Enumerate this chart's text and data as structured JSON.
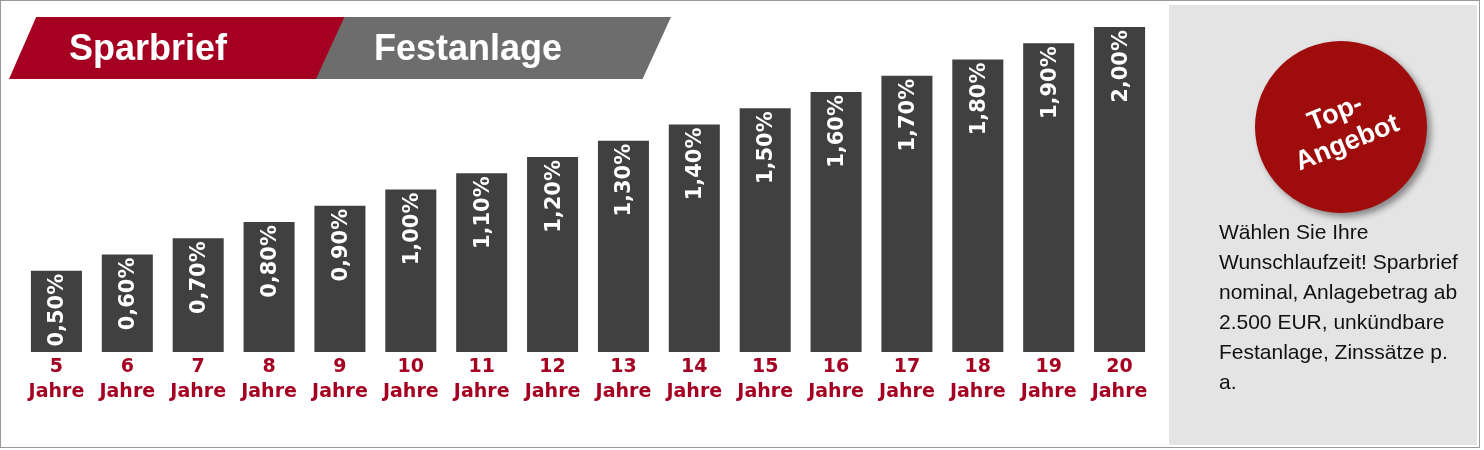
{
  "chart_data": {
    "type": "bar",
    "title": "Sparbrief",
    "subtitle": "Festanlage",
    "categories": [
      "5\nJahre",
      "6\nJahre",
      "7\nJahre",
      "8\nJahre",
      "9\nJahre",
      "10\nJahre",
      "11\nJahre",
      "12\nJahre",
      "13\nJahre",
      "14\nJahre",
      "15\nJahre",
      "16\nJahre",
      "17\nJahre",
      "18\nJahre",
      "19\nJahre",
      "20\nJahre"
    ],
    "values": [
      0.5,
      0.6,
      0.7,
      0.8,
      0.9,
      1.0,
      1.1,
      1.2,
      1.3,
      1.4,
      1.5,
      1.6,
      1.7,
      1.8,
      1.9,
      2.0
    ],
    "value_labels": [
      "0,50%",
      "0,60%",
      "0,70%",
      "0,80%",
      "0,90%",
      "1,00%",
      "1,10%",
      "1,20%",
      "1,30%",
      "1,40%",
      "1,50%",
      "1,60%",
      "1,70%",
      "1,80%",
      "1,90%",
      "2,00%"
    ],
    "color": "#404040",
    "ylim": [
      0,
      2
    ],
    "tick_labels": "x",
    "annotations": [
      "Top-Angebot",
      "Wählen Sie Ihre Wunschlaufzeit! Sparbrief nominal, Anlagebetrag ab 2.500 EUR, unkündbare Festanlage, Zinssätze p. a."
    ]
  }
}
